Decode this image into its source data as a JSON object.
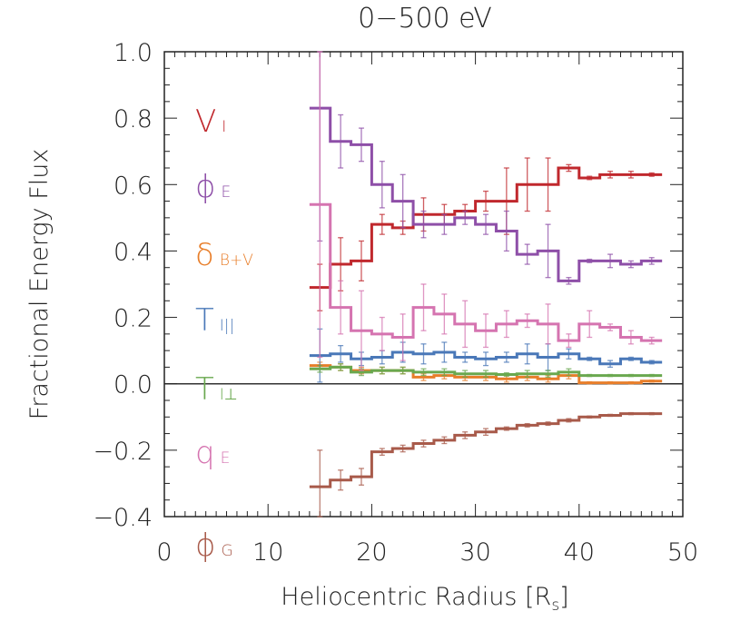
{
  "chart_data": {
    "type": "line",
    "style": "histogram-step-with-errorbars",
    "title": "0−500 eV",
    "xlabel": "Heliocentric Radius [R",
    "xlabel_sub": "s",
    "xlabel_close": "]",
    "ylabel": "Fractional Energy Flux",
    "xlim": [
      0,
      50
    ],
    "ylim": [
      -0.4,
      1.0
    ],
    "xticks": [
      0,
      10,
      20,
      30,
      40,
      50
    ],
    "xtick_labels": [
      "0",
      "10",
      "20",
      "30",
      "40",
      "50"
    ],
    "yticks": [
      -0.4,
      -0.2,
      0.0,
      0.2,
      0.4,
      0.6,
      0.8,
      1.0
    ],
    "ytick_labels": [
      "−0.4",
      "−0.2",
      "0.0",
      "0.2",
      "0.4",
      "0.6",
      "0.8",
      "1.0"
    ],
    "zero_line": true,
    "grid": false,
    "legend_placement": "left-inside",
    "x": [
      15,
      17,
      19,
      21,
      23,
      25,
      27,
      29,
      31,
      33,
      35,
      37,
      39,
      41,
      43,
      45,
      47
    ],
    "bin_width": 2,
    "series": [
      {
        "name": "V",
        "sub": "I",
        "symbol": "V",
        "color": "#c0282d",
        "values": [
          0.29,
          0.36,
          0.37,
          0.48,
          0.47,
          0.51,
          0.51,
          0.52,
          0.55,
          0.55,
          0.6,
          0.6,
          0.65,
          0.62,
          0.63,
          0.63,
          0.63
        ],
        "errors": [
          0.07,
          0.08,
          0.06,
          0.03,
          0.02,
          0.05,
          0.03,
          0.02,
          0.03,
          0.1,
          0.08,
          0.08,
          0.01,
          0.005,
          0.01,
          0.01,
          0.005
        ]
      },
      {
        "name": "phi",
        "sub": "E",
        "symbol": "ϕ",
        "color": "#8e4fa8",
        "values": [
          0.83,
          0.73,
          0.72,
          0.6,
          0.55,
          0.48,
          0.48,
          0.5,
          0.48,
          0.46,
          0.39,
          0.4,
          0.31,
          0.37,
          0.37,
          0.36,
          0.37
        ],
        "errors": [
          0.4,
          0.08,
          0.05,
          0.07,
          0.08,
          0.04,
          0.03,
          0.02,
          0.03,
          0.06,
          0.03,
          0.08,
          0.01,
          0.005,
          0.02,
          0.01,
          0.01
        ]
      },
      {
        "name": "delta",
        "sub": "B+V",
        "symbol": "δ",
        "color": "#e87e2a",
        "values": [
          0.055,
          0.05,
          0.04,
          0.04,
          0.04,
          0.02,
          0.025,
          0.02,
          0.02,
          0.015,
          0.02,
          0.015,
          0.025,
          0.003,
          0.003,
          0.003,
          0.008
        ],
        "errors": [
          0.01,
          0.01,
          0.01,
          0.01,
          0.01,
          0.01,
          0.01,
          0.01,
          0.01,
          0.01,
          0.01,
          0.01,
          0.01,
          0.003,
          0.003,
          0.003,
          0.003
        ]
      },
      {
        "name": "T_par",
        "sub": "I||",
        "symbol": "T",
        "color": "#4a78b8",
        "values": [
          0.085,
          0.09,
          0.075,
          0.08,
          0.095,
          0.09,
          0.095,
          0.08,
          0.075,
          0.08,
          0.09,
          0.08,
          0.09,
          0.075,
          0.06,
          0.075,
          0.065
        ],
        "errors": [
          0.08,
          0.025,
          0.02,
          0.02,
          0.03,
          0.03,
          0.03,
          0.015,
          0.02,
          0.015,
          0.03,
          0.04,
          0.015,
          0.005,
          0.01,
          0.005,
          0.005
        ]
      },
      {
        "name": "T_perp",
        "sub": "I⊥",
        "symbol": "T",
        "color": "#6aa84f",
        "values": [
          0.045,
          0.05,
          0.035,
          0.04,
          0.04,
          0.035,
          0.035,
          0.03,
          0.03,
          0.028,
          0.03,
          0.03,
          0.035,
          0.025,
          0.025,
          0.025,
          0.025
        ],
        "errors": [
          0.01,
          0.01,
          0.01,
          0.01,
          0.01,
          0.01,
          0.01,
          0.01,
          0.01,
          0.005,
          0.01,
          0.01,
          0.01,
          0.003,
          0.003,
          0.003,
          0.003
        ]
      },
      {
        "name": "q",
        "sub": "E",
        "symbol": "q",
        "color": "#d574b0",
        "values": [
          0.54,
          0.23,
          0.16,
          0.15,
          0.14,
          0.23,
          0.21,
          0.18,
          0.16,
          0.18,
          0.19,
          0.18,
          0.13,
          0.18,
          0.17,
          0.14,
          0.13
        ],
        "errors": [
          0.46,
          0.08,
          0.12,
          0.05,
          0.07,
          0.07,
          0.06,
          0.07,
          0.05,
          0.04,
          0.02,
          0.06,
          0.02,
          0.04,
          0.01,
          0.02,
          0.01
        ]
      },
      {
        "name": "phi",
        "sub": "G",
        "symbol": "ϕ",
        "color": "#a85a4a",
        "values": [
          -0.31,
          -0.29,
          -0.28,
          -0.205,
          -0.195,
          -0.18,
          -0.17,
          -0.155,
          -0.145,
          -0.135,
          -0.125,
          -0.12,
          -0.11,
          -0.1,
          -0.095,
          -0.09,
          -0.09
        ],
        "errors": [
          0.11,
          0.03,
          0.025,
          0.01,
          0.01,
          0.01,
          0.01,
          0.01,
          0.01,
          0.005,
          0.005,
          0.005,
          0.005,
          0.003,
          0.003,
          0.003,
          0.003
        ]
      }
    ]
  }
}
